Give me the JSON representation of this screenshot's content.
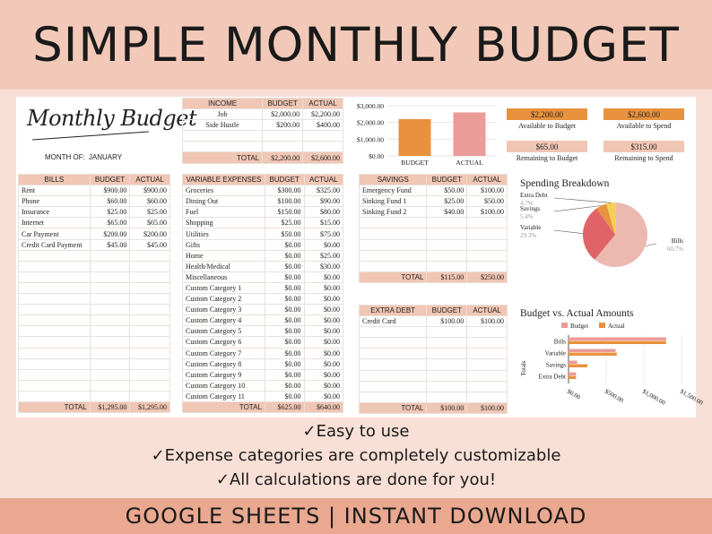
{
  "banner": {
    "title": "SIMPLE MONTHLY BUDGET"
  },
  "header": {
    "script_title": "Monthly Budget",
    "month_label": "MONTH OF:",
    "month_value": "JANUARY"
  },
  "income": {
    "headers": [
      "INCOME",
      "BUDGET",
      "ACTUAL"
    ],
    "rows": [
      [
        "Job",
        "$2,000.00",
        "$2,200.00"
      ],
      [
        "Side Hustle",
        "$200.00",
        "$400.00"
      ],
      [
        "",
        "",
        ""
      ],
      [
        "",
        "",
        ""
      ]
    ],
    "total": [
      "TOTAL",
      "$2,200.00",
      "$2,600.00"
    ]
  },
  "income_chart": {
    "y_ticks": [
      "$3,000.00",
      "$2,000.00",
      "$1,000.00",
      "$0.00"
    ],
    "categories": [
      "BUDGET",
      "ACTUAL"
    ],
    "values": [
      2200,
      2600
    ],
    "ylim": [
      0,
      3000
    ],
    "colors": [
      "#e8923e",
      "#eb9b98"
    ]
  },
  "summary": {
    "cards": [
      {
        "value": "$2,200.00",
        "caption": "Available to Budget",
        "color": "#e8923e"
      },
      {
        "value": "$2,600.00",
        "caption": "Available to Spend",
        "color": "#e8923e"
      },
      {
        "value": "$65.00",
        "caption": "Remaining to Budget",
        "color": "#f0c6b4"
      },
      {
        "value": "$315.00",
        "caption": "Remaining to Spend",
        "color": "#f0c6b4"
      }
    ]
  },
  "bills": {
    "headers": [
      "BILLS",
      "BUDGET",
      "ACTUAL"
    ],
    "rows": [
      [
        "Rent",
        "$900.00",
        "$900.00"
      ],
      [
        "Phone",
        "$60.00",
        "$60.00"
      ],
      [
        "Insurance",
        "$25.00",
        "$25.00"
      ],
      [
        "Internet",
        "$65.00",
        "$65.00"
      ],
      [
        "Car Payment",
        "$200.00",
        "$200.00"
      ],
      [
        "Credit Card Payment",
        "$45.00",
        "$45.00"
      ],
      [
        "",
        "",
        ""
      ],
      [
        "",
        "",
        ""
      ],
      [
        "",
        "",
        ""
      ],
      [
        "",
        "",
        ""
      ],
      [
        "",
        "",
        ""
      ],
      [
        "",
        "",
        ""
      ],
      [
        "",
        "",
        ""
      ],
      [
        "",
        "",
        ""
      ],
      [
        "",
        "",
        ""
      ],
      [
        "",
        "",
        ""
      ],
      [
        "",
        "",
        ""
      ],
      [
        "",
        "",
        ""
      ],
      [
        "",
        "",
        ""
      ],
      [
        "",
        "",
        ""
      ]
    ],
    "total": [
      "TOTAL",
      "$1,295.00",
      "$1,295.00"
    ]
  },
  "variable": {
    "headers": [
      "VARIABLE EXPENSES",
      "BUDGET",
      "ACTUAL"
    ],
    "rows": [
      [
        "Groceries",
        "$300.00",
        "$325.00"
      ],
      [
        "Dining Out",
        "$100.00",
        "$90.00"
      ],
      [
        "Fuel",
        "$150.00",
        "$80.00"
      ],
      [
        "Shopping",
        "$25.00",
        "$15.00"
      ],
      [
        "Utilities",
        "$50.00",
        "$75.00"
      ],
      [
        "Gifts",
        "$0.00",
        "$0.00"
      ],
      [
        "Home",
        "$0.00",
        "$25.00"
      ],
      [
        "Health/Medical",
        "$0.00",
        "$30.00"
      ],
      [
        "Miscellaneous",
        "$0.00",
        "$0.00"
      ],
      [
        "Custom Category 1",
        "$0.00",
        "$0.00"
      ],
      [
        "Custom Category 2",
        "$0.00",
        "$0.00"
      ],
      [
        "Custom Category 3",
        "$0.00",
        "$0.00"
      ],
      [
        "Custom Category 4",
        "$0.00",
        "$0.00"
      ],
      [
        "Custom Category 5",
        "$0.00",
        "$0.00"
      ],
      [
        "Custom Category 6",
        "$0.00",
        "$0.00"
      ],
      [
        "Custom Category 7",
        "$0.00",
        "$0.00"
      ],
      [
        "Custom Category 8",
        "$0.00",
        "$0.00"
      ],
      [
        "Custom Category 9",
        "$0.00",
        "$0.00"
      ],
      [
        "Custom Category 10",
        "$0.00",
        "$0.00"
      ],
      [
        "Custom Category 11",
        "$0.00",
        "$0.00"
      ]
    ],
    "total": [
      "TOTAL",
      "$625.00",
      "$640.00"
    ]
  },
  "savings": {
    "headers": [
      "SAVINGS",
      "BUDGET",
      "ACTUAL"
    ],
    "rows": [
      [
        "Emergency Fund",
        "$50.00",
        "$100.00"
      ],
      [
        "Sinking Fund 1",
        "$25.00",
        "$50.00"
      ],
      [
        "Sinking Fund 2",
        "$40.00",
        "$100.00"
      ],
      [
        "",
        "",
        ""
      ],
      [
        "",
        "",
        ""
      ],
      [
        "",
        "",
        ""
      ],
      [
        "",
        "",
        ""
      ],
      [
        "",
        "",
        ""
      ]
    ],
    "total": [
      "TOTAL",
      "$115.00",
      "$250.00"
    ]
  },
  "extra_debt": {
    "headers": [
      "EXTRA DEBT",
      "BUDGET",
      "ACTUAL"
    ],
    "rows": [
      [
        "Credit Card",
        "$100.00",
        "$100.00"
      ],
      [
        "",
        "",
        ""
      ],
      [
        "",
        "",
        ""
      ],
      [
        "",
        "",
        ""
      ],
      [
        "",
        "",
        ""
      ],
      [
        "",
        "",
        ""
      ],
      [
        "",
        "",
        ""
      ],
      [
        "",
        "",
        ""
      ]
    ],
    "total": [
      "TOTAL",
      "$100.00",
      "$100.00"
    ]
  },
  "chart_data": [
    {
      "type": "pie",
      "title": "Spending Breakdown",
      "categories": [
        "Bills",
        "Variable",
        "Savings",
        "Extra Debt"
      ],
      "values": [
        60.7,
        29.3,
        5.4,
        4.7
      ],
      "percent_labels": [
        "60.7%",
        "29.3%",
        "5.4%",
        "4.7%"
      ],
      "colors": [
        "#ecb9b0",
        "#e06467",
        "#e8923e",
        "#f5cf55"
      ]
    },
    {
      "type": "bar",
      "orientation": "horizontal",
      "title": "Budget vs. Actual Amounts",
      "categories": [
        "Bills",
        "Variable",
        "Savings",
        "Extra Debt"
      ],
      "series": [
        {
          "name": "Budget",
          "values": [
            1295,
            625,
            115,
            100
          ],
          "color": "#eb9b98"
        },
        {
          "name": "Actual",
          "values": [
            1295,
            640,
            250,
            100
          ],
          "color": "#e8923e"
        }
      ],
      "ylabel": "Totals",
      "x_ticks": [
        "$0.00",
        "$500.00",
        "$1,000.00",
        "$1,500.00"
      ],
      "xlim": [
        0,
        1500
      ]
    }
  ],
  "features": [
    "✓Easy to use",
    "✓Expense categories are completely customizable",
    "✓All calculations are done for you!"
  ],
  "footer": {
    "text": "GOOGLE SHEETS | INSTANT DOWNLOAD"
  }
}
